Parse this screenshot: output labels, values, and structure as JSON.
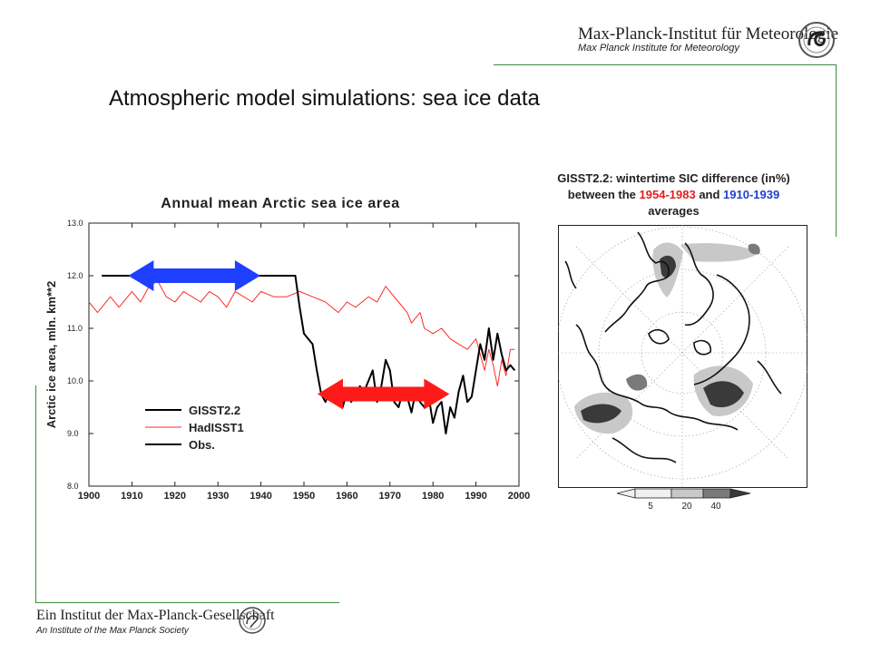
{
  "header": {
    "institute_name": "Max-Planck-Institut für Meteorologie",
    "institute_name_en": "Max Planck Institute for Meteorology",
    "logo_icon": "mpi-meteorology-logo-icon"
  },
  "slide": {
    "title": "Atmospheric model simulations: sea ice data"
  },
  "footer": {
    "society_name": "Ein Institut der Max-Planck-Gesellschaft",
    "society_name_en": "An Institute of the Max Planck Society",
    "logo_icon": "minerva-seal-icon"
  },
  "colors": {
    "accent_line": "#3c8a3c",
    "blue_arrow": "#1f3fff",
    "red_arrow": "#ff1a1a",
    "hadisst": "#ff2a2a"
  },
  "chart_data": [
    {
      "type": "line",
      "title": "Annual mean Arctic sea ice area",
      "xlabel": "",
      "ylabel": "Arctic ice area, mln. km**2",
      "xlim": [
        1900,
        2000
      ],
      "ylim": [
        8.0,
        13.0
      ],
      "x_ticks": [
        "1900",
        "1910",
        "1920",
        "1930",
        "1940",
        "1950",
        "1960",
        "1970",
        "1980",
        "1990",
        "2000"
      ],
      "y_ticks": [
        "8.0",
        "9.0",
        "10.0",
        "11.0",
        "12.0",
        "13.0"
      ],
      "grid": false,
      "legend": "lower-left",
      "series": [
        {
          "name": "GISST2.2",
          "color": "#000000",
          "x": [
            1903,
            1948,
            1949,
            1950,
            1951,
            1952,
            1953,
            1954,
            1955,
            1956,
            1957,
            1958,
            1959,
            1960,
            1961,
            1962,
            1963,
            1964,
            1965,
            1966,
            1967,
            1968,
            1969,
            1970,
            1971,
            1972,
            1973,
            1974,
            1975,
            1976,
            1977,
            1978,
            1979,
            1980,
            1981,
            1982,
            1983,
            1984,
            1985,
            1986,
            1987,
            1988,
            1989,
            1990,
            1991,
            1992,
            1993,
            1994,
            1995,
            1996,
            1997,
            1998,
            1999
          ],
          "y": [
            12.0,
            12.0,
            11.4,
            10.9,
            10.8,
            10.7,
            10.2,
            9.75,
            9.6,
            9.8,
            9.6,
            9.7,
            9.5,
            9.8,
            9.6,
            9.75,
            9.9,
            9.8,
            10.0,
            10.2,
            9.6,
            9.9,
            10.4,
            10.2,
            9.6,
            9.5,
            9.8,
            9.7,
            9.4,
            9.8,
            9.6,
            9.5,
            9.7,
            9.2,
            9.5,
            9.6,
            9.0,
            9.5,
            9.3,
            9.8,
            10.1,
            9.6,
            9.7,
            10.2,
            10.7,
            10.4,
            11.0,
            10.4,
            10.9,
            10.5,
            10.2,
            10.3,
            10.2
          ]
        },
        {
          "name": "HadISST1",
          "color": "#ff2a2a",
          "x": [
            1900,
            1902,
            1905,
            1907,
            1910,
            1912,
            1914,
            1916,
            1918,
            1920,
            1922,
            1924,
            1926,
            1928,
            1930,
            1932,
            1934,
            1936,
            1938,
            1940,
            1943,
            1946,
            1949,
            1952,
            1955,
            1958,
            1960,
            1962,
            1965,
            1967,
            1969,
            1970,
            1972,
            1974,
            1975,
            1977,
            1978,
            1980,
            1982,
            1984,
            1986,
            1988,
            1990,
            1992,
            1993,
            1994,
            1995,
            1996,
            1997,
            1998,
            1999
          ],
          "y": [
            11.5,
            11.3,
            11.6,
            11.4,
            11.7,
            11.5,
            11.8,
            11.9,
            11.6,
            11.5,
            11.7,
            11.6,
            11.5,
            11.7,
            11.6,
            11.4,
            11.7,
            11.6,
            11.5,
            11.7,
            11.6,
            11.6,
            11.7,
            11.6,
            11.5,
            11.3,
            11.5,
            11.4,
            11.6,
            11.5,
            11.8,
            11.7,
            11.5,
            11.3,
            11.1,
            11.3,
            11.0,
            10.9,
            11.0,
            10.8,
            10.7,
            10.6,
            10.8,
            10.2,
            10.6,
            10.3,
            9.9,
            10.4,
            10.1,
            10.6,
            10.6
          ]
        },
        {
          "name": "Obs.",
          "color": "#000000",
          "x": [],
          "y": []
        }
      ],
      "annotations": [
        {
          "type": "double-arrow",
          "color": "blue",
          "x_range": [
            1910,
            1939
          ],
          "y": 12.0
        },
        {
          "type": "double-arrow",
          "color": "red",
          "x_range": [
            1954,
            1983
          ],
          "y": 9.75
        }
      ]
    },
    {
      "type": "heatmap",
      "projection": "north-polar-stereographic",
      "title_lines": [
        {
          "parts": [
            {
              "text": "GISST2.2: wintertime SIC difference (in%)",
              "color": "#222222"
            }
          ]
        },
        {
          "parts": [
            {
              "text": "between  the ",
              "color": "#222222"
            },
            {
              "text": "1954-1983",
              "color": "#e02020"
            },
            {
              "text": " and ",
              "color": "#222222"
            },
            {
              "text": "1910-1939",
              "color": "#1f3fd0"
            }
          ]
        },
        {
          "parts": [
            {
              "text": "averages",
              "color": "#222222"
            }
          ]
        }
      ],
      "colorbar": {
        "ticks": [
          "5",
          "20",
          "40"
        ],
        "levels": [
          {
            "from": 5,
            "to": 20,
            "color": "#c8c8c8"
          },
          {
            "from": 20,
            "to": 40,
            "color": "#7a7a7a"
          },
          {
            "from": 40,
            "to": 60,
            "color": "#3a3a3a"
          }
        ]
      }
    }
  ]
}
